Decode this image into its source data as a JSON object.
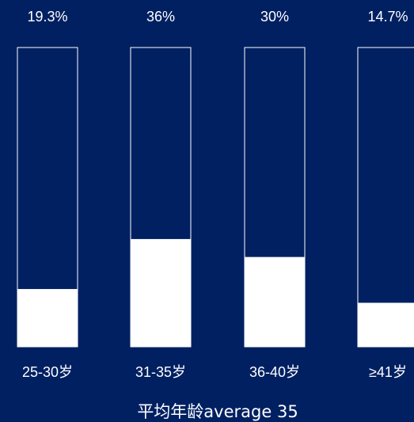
{
  "colors": {
    "background": "#002062",
    "bar_fill": "#ffffff",
    "bar_outline": "#ffffff",
    "text": "#ffffff"
  },
  "chart_data": {
    "type": "bar",
    "categories": [
      "25-30岁",
      "31-35岁",
      "36-40岁",
      "≥41岁"
    ],
    "values": [
      19.3,
      36,
      30,
      14.7
    ],
    "value_labels": [
      "19.3%",
      "36%",
      "30%",
      "14.7%"
    ],
    "unit": "%",
    "ylim": [
      0,
      100
    ],
    "grid": false,
    "legend": "none",
    "caption": "平均年龄average 35"
  }
}
